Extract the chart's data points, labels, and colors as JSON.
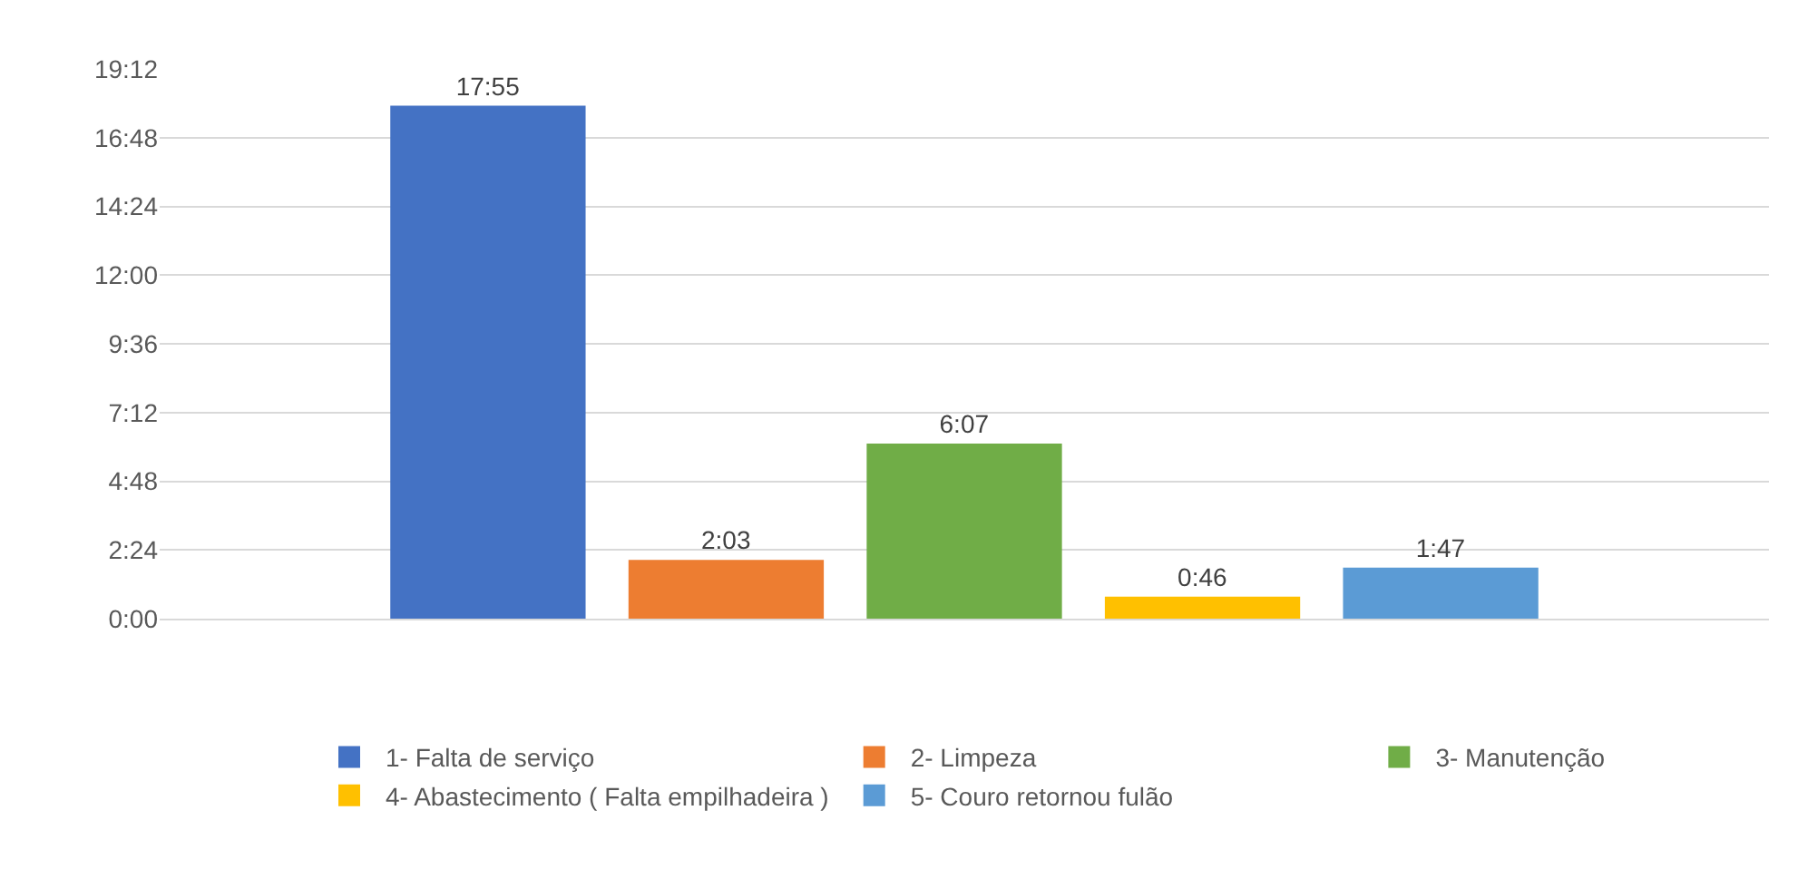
{
  "chart_data": {
    "type": "bar",
    "categories": [
      null
    ],
    "series": [
      {
        "name": "1- Falta de serviço",
        "color": "#4472c4",
        "values": [
          17.9167
        ],
        "value_labels": [
          "17:55"
        ]
      },
      {
        "name": "2- Limpeza",
        "color": "#ed7d31",
        "values": [
          2.05
        ],
        "value_labels": [
          "2:03"
        ]
      },
      {
        "name": "3- Manutenção",
        "color": "#70ad47",
        "values": [
          6.1167
        ],
        "value_labels": [
          "6:07"
        ]
      },
      {
        "name": "4- Abastecimento ( Falta empilhadeira )",
        "color": "#ffc000",
        "values": [
          0.7667
        ],
        "value_labels": [
          "0:46"
        ]
      },
      {
        "name": "5- Couro retornou fulão",
        "color": "#5b9bd5",
        "values": [
          1.7833
        ],
        "value_labels": [
          "1:47"
        ]
      }
    ],
    "ylim": [
      0,
      19.2
    ],
    "yticks": [
      {
        "value": 0,
        "label": "0:00"
      },
      {
        "value": 2.4,
        "label": "2:24"
      },
      {
        "value": 4.8,
        "label": "4:48"
      },
      {
        "value": 7.2,
        "label": "7:12"
      },
      {
        "value": 9.6,
        "label": "9:36"
      },
      {
        "value": 12,
        "label": "12:00"
      },
      {
        "value": 14.4,
        "label": "14:24"
      },
      {
        "value": 16.8,
        "label": "16:48"
      },
      {
        "value": 19.2,
        "label": "19:12"
      }
    ],
    "grid": "y",
    "legend": "bottom"
  }
}
